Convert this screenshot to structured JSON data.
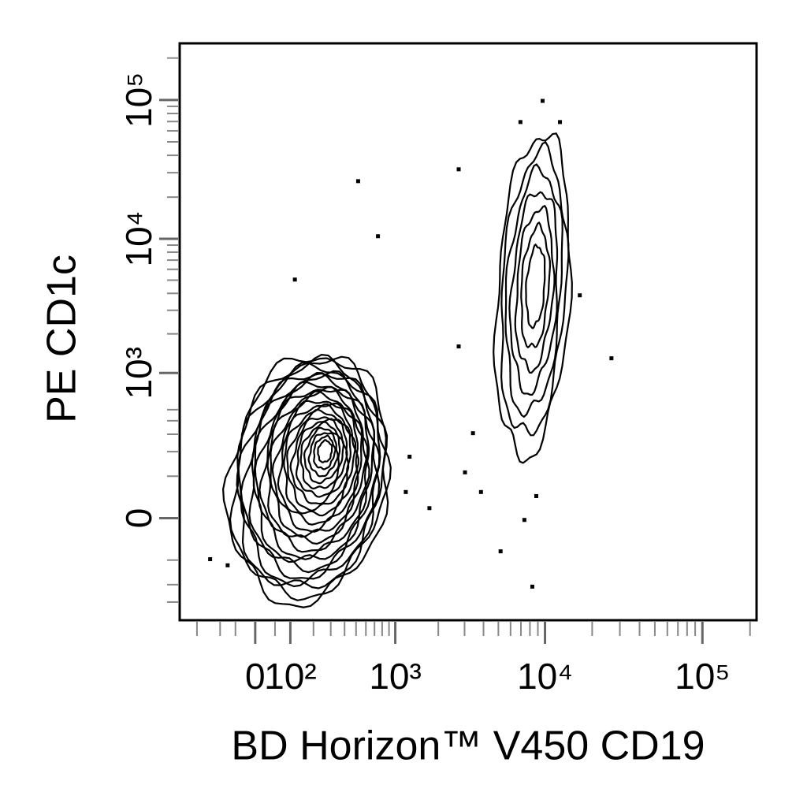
{
  "chart_data": {
    "type": "contour",
    "xlabel": "BD Horizon™ V450 CD19",
    "ylabel": "PE CD1c",
    "xscale": "biexponential",
    "yscale": "biexponential",
    "xlim": [
      -300,
      220000
    ],
    "ylim": [
      -440,
      255000
    ],
    "xticks": [
      0,
      {
        "value": 100,
        "label": "10²"
      },
      {
        "value": 1000,
        "label": "10³"
      },
      {
        "value": 10000,
        "label": "10⁴"
      },
      {
        "value": 100000,
        "label": "10⁵"
      }
    ],
    "yticks": [
      0,
      {
        "value": 1000,
        "label": "10³"
      },
      {
        "value": 10000,
        "label": "10⁴"
      },
      {
        "value": 100000,
        "label": "10⁵"
      }
    ],
    "xminorticks": [
      -200,
      -100,
      -50,
      50,
      200,
      300,
      400,
      500,
      600,
      700,
      800,
      900,
      2000,
      3000,
      4000,
      5000,
      6000,
      7000,
      8000,
      9000,
      20000,
      30000,
      40000,
      50000,
      60000,
      70000,
      80000,
      90000,
      200000
    ],
    "yminorticks": [
      -300,
      -200,
      -100,
      100,
      200,
      300,
      400,
      500,
      2000,
      3000,
      4000,
      5000,
      6000,
      7000,
      8000,
      9000,
      20000,
      30000,
      40000,
      50000,
      60000,
      70000,
      80000,
      90000,
      200000
    ],
    "populations": [
      {
        "x": 273,
        "y": 214
      },
      {
        "x": 8790,
        "y": 4730
      }
    ],
    "color": "#000000",
    "x": [
      520,
      744,
      117,
      2742,
      2742,
      16680,
      26520,
      6950,
      9650,
      12470,
      3410,
      3020,
      3850,
      5170,
      8290,
      1740,
      1190,
      -139,
      -74,
      1266,
      7370,
      8790
    ],
    "y": [
      26080,
      10440,
      5050,
      31740,
      1606,
      3870,
      1303,
      69400,
      98500,
      69400,
      307,
      113,
      54,
      -73,
      -210,
      18,
      54,
      -97,
      -118,
      176,
      -3,
      44
    ]
  }
}
